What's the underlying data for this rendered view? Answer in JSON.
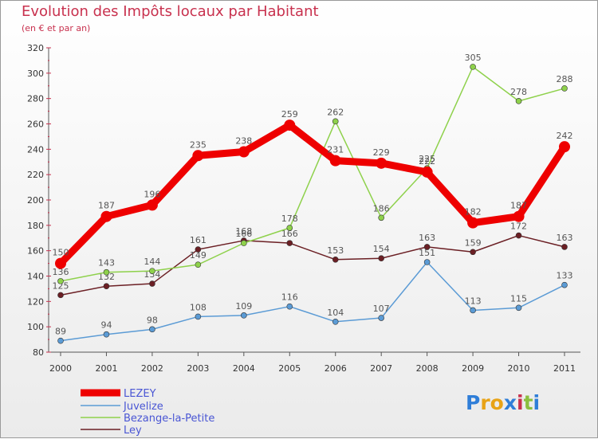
{
  "title": "Evolution des Impôts locaux par Habitant",
  "subtitle": "(en € et par an)",
  "logo": {
    "text": "Proxiti",
    "letters": [
      "P",
      "r",
      "o",
      "x",
      "i",
      "t",
      "i"
    ],
    "colors": [
      "#2f7ed8",
      "#e8a317",
      "#e8a317",
      "#2f7ed8",
      "#c8314e",
      "#8bbf3f",
      "#2f7ed8"
    ]
  },
  "chart_data": {
    "type": "line",
    "categories": [
      "2000",
      "2001",
      "2002",
      "2003",
      "2004",
      "2005",
      "2006",
      "2007",
      "2008",
      "2009",
      "2010",
      "2011"
    ],
    "ylim": [
      80,
      320
    ],
    "yticks": [
      80,
      100,
      120,
      140,
      160,
      180,
      200,
      220,
      240,
      260,
      280,
      300,
      320
    ],
    "grid": false,
    "legend_position": "bottom-left",
    "series": [
      {
        "name": "LEZEY",
        "color": "#ee0000",
        "values": [
          150,
          187,
          196,
          235,
          238,
          259,
          231,
          229,
          222,
          182,
          187,
          242
        ]
      },
      {
        "name": "Juvelize",
        "color": "#5b9bd5",
        "values": [
          89,
          94,
          98,
          108,
          109,
          116,
          104,
          107,
          151,
          113,
          115,
          133
        ]
      },
      {
        "name": "Bezange-la-Petite",
        "color": "#8ed14b",
        "values": [
          136,
          143,
          144,
          149,
          166,
          178,
          262,
          186,
          225,
          305,
          278,
          288
        ]
      },
      {
        "name": "Ley",
        "color": "#6b1f24",
        "values": [
          125,
          132,
          134,
          161,
          168,
          166,
          153,
          154,
          163,
          159,
          172,
          163
        ]
      }
    ]
  }
}
